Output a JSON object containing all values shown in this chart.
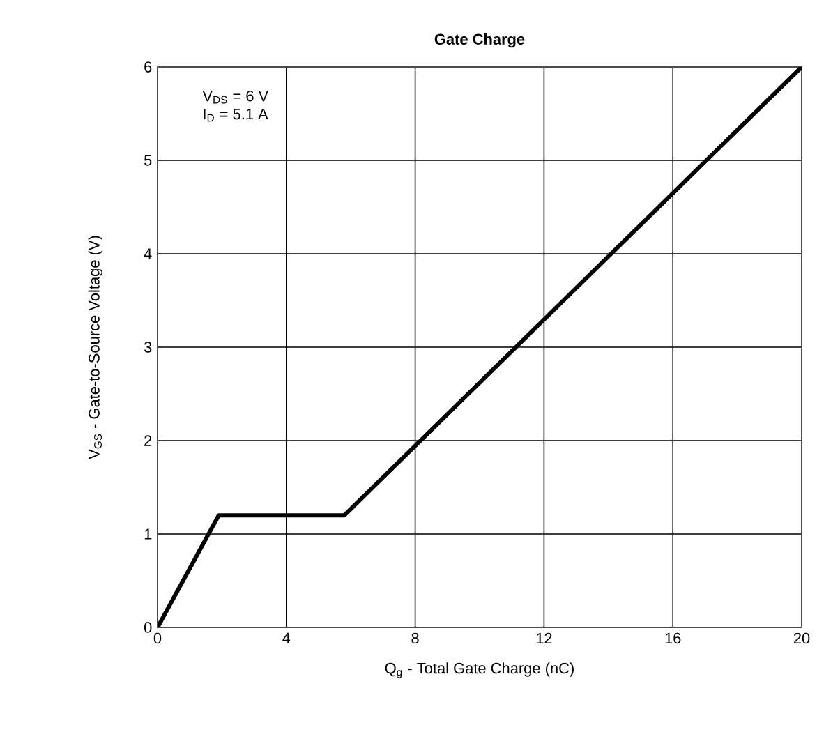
{
  "chart_data": {
    "type": "line",
    "title": "Gate Charge",
    "xlabel": "Q$_{g}$  -  Total Gate Charge (nC)",
    "ylabel": "V$_{GS}$  -  Gate-to-Source Voltage (V)",
    "annotations": [
      "V$_{DS}$ = 6 V",
      "I$_{D}$ = 5.1 A"
    ],
    "x": [
      0,
      1.9,
      5.8,
      20
    ],
    "series": [
      {
        "color": "#000000",
        "values": [
          0,
          1.2,
          1.2,
          6
        ]
      }
    ],
    "xlim": [
      0,
      20
    ],
    "ylim": [
      0,
      6
    ],
    "xticks": [
      0,
      4,
      8,
      12,
      16,
      20
    ],
    "yticks": [
      0,
      1,
      2,
      3,
      4,
      5,
      6
    ],
    "grid": true,
    "marker": "none",
    "line_style": "solid"
  }
}
